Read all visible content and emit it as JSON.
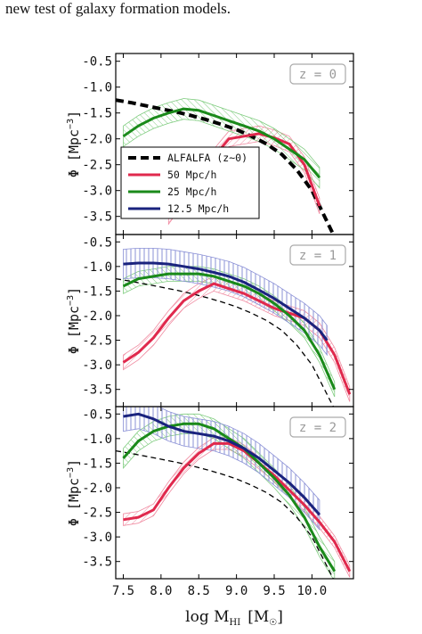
{
  "page": {
    "top_text": "new test of galaxy formation models."
  },
  "colors": {
    "ALFALFA": "#000000",
    "50": "#e0294d",
    "25": "#1a8a1a",
    "12.5": "#1a237e",
    "50_band": "#f08aa0",
    "25_band": "#7fcc7f",
    "12.5_band": "#8a90d6"
  },
  "chart_data": {
    "type": "line",
    "xlim": [
      7.4,
      10.55
    ],
    "ylim": [
      -3.85,
      -0.35
    ],
    "x_ticks": [
      "7.5",
      "8.0",
      "8.5",
      "9.0",
      "9.5",
      "10.0"
    ],
    "y_ticks": [
      "-0.5",
      "-1.0",
      "-1.5",
      "-2.0",
      "-2.5",
      "-3.0",
      "-3.5"
    ],
    "xlabel_main": "log M",
    "xlabel_sub": "HI",
    "xlabel_unit": "[M",
    "xlabel_unit_end": "]",
    "xlabel_sun": "☉",
    "ylabel_main": "Φ  [Mpc",
    "ylabel_exp": "−3",
    "ylabel_end": "]",
    "grid": false,
    "legend": {
      "position": "lower-left of top panel",
      "entries": [
        {
          "key": "ALFALFA",
          "label": "ALFALFA (z~0)",
          "style": "dashed"
        },
        {
          "key": "50",
          "label": "50 Mpc/h",
          "style": "solid"
        },
        {
          "key": "25",
          "label": "25 Mpc/h",
          "style": "solid"
        },
        {
          "key": "12.5",
          "label": "12.5 Mpc/h",
          "style": "solid"
        }
      ]
    },
    "panels": [
      {
        "redshift_label": "z = 0",
        "alfalfa_style": "thick-dashed",
        "series": [
          {
            "key": "ALFALFA",
            "x": [
              7.4,
              7.6,
              7.8,
              8.0,
              8.2,
              8.4,
              8.6,
              8.8,
              9.0,
              9.2,
              9.4,
              9.6,
              9.8,
              10.0,
              10.1,
              10.2,
              10.3
            ],
            "y": [
              -1.25,
              -1.3,
              -1.36,
              -1.42,
              -1.48,
              -1.55,
              -1.63,
              -1.72,
              -1.82,
              -1.95,
              -2.1,
              -2.3,
              -2.6,
              -3.0,
              -3.3,
              -3.6,
              -3.9
            ]
          },
          {
            "key": "50",
            "band": 0.15,
            "x": [
              8.1,
              8.3,
              8.5,
              8.7,
              8.9,
              9.1,
              9.3,
              9.5,
              9.7,
              9.9,
              10.1
            ],
            "y": [
              -3.5,
              -3.1,
              -2.7,
              -2.35,
              -2.0,
              -1.95,
              -1.9,
              -1.98,
              -2.1,
              -2.5,
              -3.3
            ]
          },
          {
            "key": "25",
            "band": 0.2,
            "x": [
              7.5,
              7.7,
              7.9,
              8.1,
              8.3,
              8.5,
              8.7,
              8.9,
              9.1,
              9.3,
              9.5,
              9.7,
              9.9,
              10.1
            ],
            "y": [
              -1.95,
              -1.75,
              -1.6,
              -1.5,
              -1.42,
              -1.45,
              -1.55,
              -1.65,
              -1.75,
              -1.85,
              -2.0,
              -2.2,
              -2.4,
              -2.75
            ]
          }
        ]
      },
      {
        "redshift_label": "z = 1",
        "alfalfa_style": "thin-dashed",
        "series": [
          {
            "key": "ALFALFA",
            "x": [
              7.4,
              7.6,
              7.8,
              8.0,
              8.2,
              8.4,
              8.6,
              8.8,
              9.0,
              9.2,
              9.4,
              9.6,
              9.8,
              10.0,
              10.1,
              10.2,
              10.3
            ],
            "y": [
              -1.25,
              -1.3,
              -1.36,
              -1.42,
              -1.48,
              -1.55,
              -1.63,
              -1.72,
              -1.82,
              -1.95,
              -2.1,
              -2.3,
              -2.6,
              -3.0,
              -3.3,
              -3.6,
              -3.9
            ]
          },
          {
            "key": "50",
            "band": 0.15,
            "x": [
              7.5,
              7.7,
              7.9,
              8.1,
              8.3,
              8.5,
              8.7,
              8.9,
              9.1,
              9.3,
              9.5,
              9.7,
              9.9,
              10.1,
              10.3,
              10.5
            ],
            "y": [
              -2.95,
              -2.75,
              -2.45,
              -2.05,
              -1.7,
              -1.5,
              -1.35,
              -1.45,
              -1.55,
              -1.7,
              -1.85,
              -1.95,
              -2.05,
              -2.3,
              -2.8,
              -3.6
            ]
          },
          {
            "key": "25",
            "band": 0.15,
            "x": [
              7.5,
              7.7,
              7.9,
              8.1,
              8.3,
              8.5,
              8.7,
              8.9,
              9.1,
              9.3,
              9.5,
              9.7,
              9.9,
              10.1,
              10.3
            ],
            "y": [
              -1.4,
              -1.25,
              -1.2,
              -1.15,
              -1.15,
              -1.15,
              -1.2,
              -1.3,
              -1.4,
              -1.55,
              -1.75,
              -2.0,
              -2.3,
              -2.8,
              -3.5
            ]
          },
          {
            "key": "12.5",
            "band": 0.3,
            "x": [
              7.5,
              7.7,
              7.9,
              8.1,
              8.3,
              8.5,
              8.7,
              8.9,
              9.1,
              9.3,
              9.5,
              9.7,
              9.9,
              10.1,
              10.2
            ],
            "y": [
              -0.95,
              -0.93,
              -0.93,
              -0.95,
              -1.0,
              -1.05,
              -1.12,
              -1.2,
              -1.32,
              -1.48,
              -1.65,
              -1.85,
              -2.05,
              -2.3,
              -2.5
            ]
          }
        ]
      },
      {
        "redshift_label": "z = 2",
        "alfalfa_style": "thin-dashed",
        "series": [
          {
            "key": "ALFALFA",
            "x": [
              7.4,
              7.6,
              7.8,
              8.0,
              8.2,
              8.4,
              8.6,
              8.8,
              9.0,
              9.2,
              9.4,
              9.6,
              9.8,
              10.0,
              10.1,
              10.2,
              10.3
            ],
            "y": [
              -1.25,
              -1.3,
              -1.36,
              -1.42,
              -1.48,
              -1.55,
              -1.63,
              -1.72,
              -1.82,
              -1.95,
              -2.1,
              -2.3,
              -2.6,
              -3.0,
              -3.3,
              -3.6,
              -3.9
            ]
          },
          {
            "key": "50",
            "band": 0.12,
            "x": [
              7.5,
              7.7,
              7.9,
              8.1,
              8.3,
              8.5,
              8.7,
              8.9,
              9.1,
              9.3,
              9.5,
              9.7,
              9.9,
              10.1,
              10.3,
              10.5
            ],
            "y": [
              -2.65,
              -2.6,
              -2.45,
              -2.0,
              -1.6,
              -1.3,
              -1.1,
              -1.1,
              -1.25,
              -1.5,
              -1.75,
              -2.05,
              -2.35,
              -2.7,
              -3.1,
              -3.7
            ]
          },
          {
            "key": "25",
            "band": 0.2,
            "x": [
              7.5,
              7.7,
              7.9,
              8.1,
              8.3,
              8.5,
              8.7,
              8.9,
              9.1,
              9.3,
              9.5,
              9.7,
              9.9,
              10.1,
              10.3
            ],
            "y": [
              -1.4,
              -1.05,
              -0.85,
              -0.75,
              -0.7,
              -0.7,
              -0.8,
              -1.0,
              -1.2,
              -1.5,
              -1.8,
              -2.15,
              -2.6,
              -3.2,
              -3.7
            ]
          },
          {
            "key": "12.5",
            "band": 0.3,
            "x": [
              7.5,
              7.7,
              7.9,
              8.1,
              8.3,
              8.5,
              8.7,
              8.9,
              9.1,
              9.3,
              9.5,
              9.7,
              9.9,
              10.1
            ],
            "y": [
              -0.55,
              -0.5,
              -0.6,
              -0.75,
              -0.85,
              -0.9,
              -0.95,
              -1.05,
              -1.2,
              -1.4,
              -1.65,
              -1.9,
              -2.2,
              -2.55
            ]
          }
        ]
      }
    ]
  }
}
